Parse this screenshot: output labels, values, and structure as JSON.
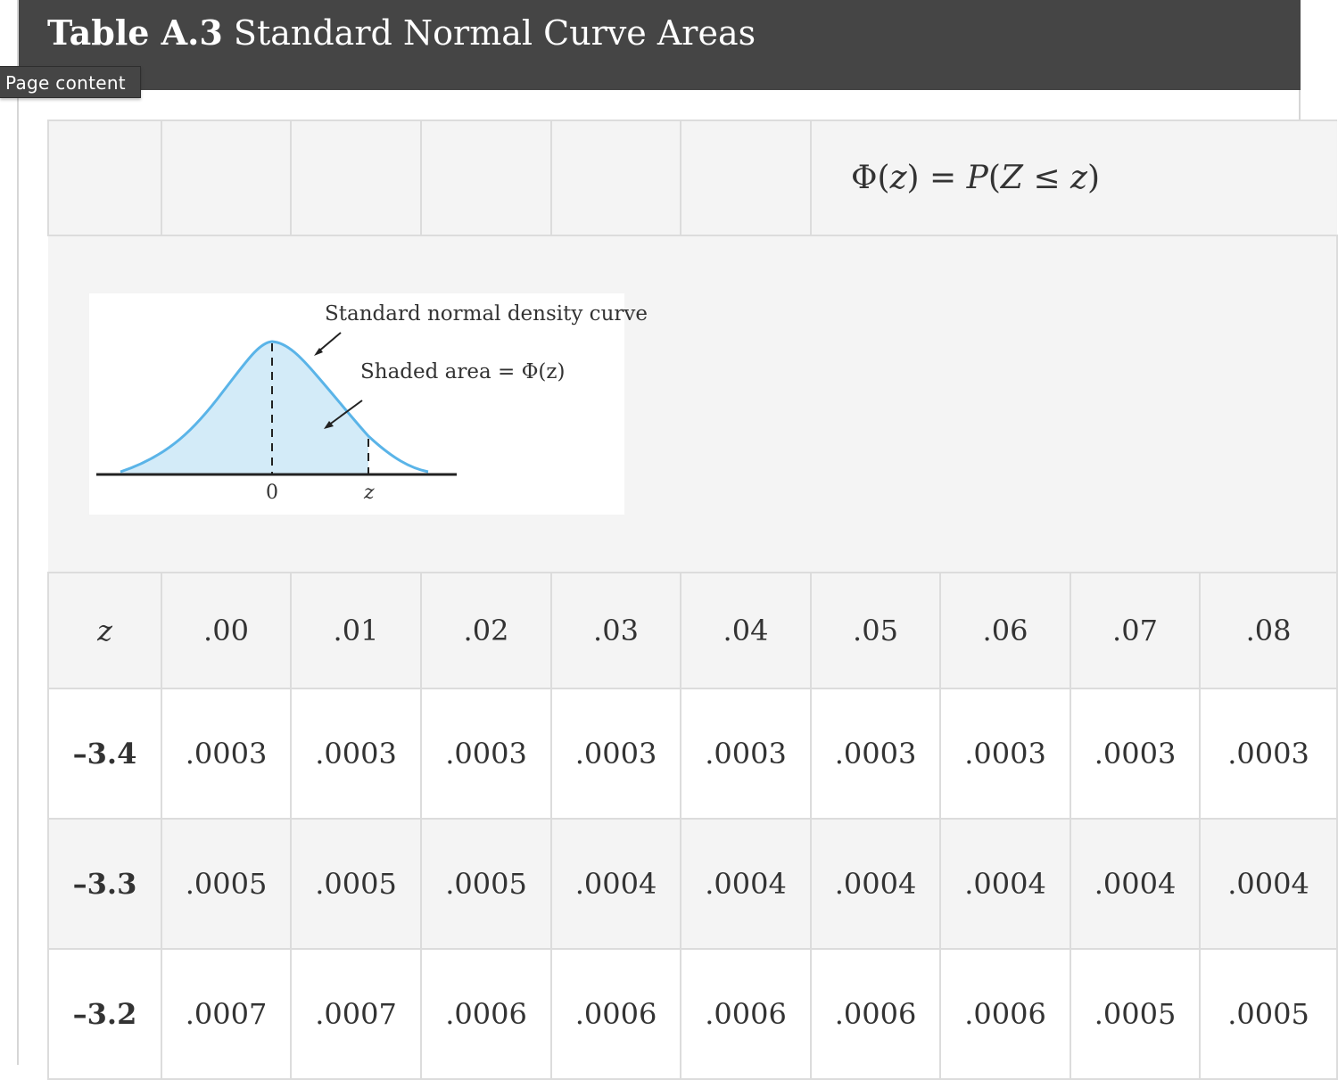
{
  "header": {
    "title_bold": "Table A.3",
    "title_rest": "Standard Normal Curve Areas"
  },
  "page_content_button": "Page content",
  "formula": {
    "phi": "Φ(",
    "z1": "z",
    "mid": ") = ",
    "P": "P",
    "open": "(",
    "Z": "Z",
    "le": " ≤ ",
    "z2": "z",
    "close": ")"
  },
  "figure": {
    "curve_label": "Standard normal density curve",
    "shaded_label": "Shaded area = Φ(z)",
    "tick_zero": "0",
    "tick_z": "z",
    "colors": {
      "curve": "#5ab4e8",
      "fill": "#d3ebf8"
    }
  },
  "columns": {
    "z_label": "z",
    "headers": [
      ".00",
      ".01",
      ".02",
      ".03",
      ".04",
      ".05",
      ".06",
      ".07",
      ".08"
    ]
  },
  "rows": [
    {
      "z": "–3.4",
      "values": [
        ".0003",
        ".0003",
        ".0003",
        ".0003",
        ".0003",
        ".0003",
        ".0003",
        ".0003",
        ".0003"
      ]
    },
    {
      "z": "–3.3",
      "values": [
        ".0005",
        ".0005",
        ".0005",
        ".0004",
        ".0004",
        ".0004",
        ".0004",
        ".0004",
        ".0004"
      ]
    },
    {
      "z": "–3.2",
      "values": [
        ".0007",
        ".0007",
        ".0006",
        ".0006",
        ".0006",
        ".0006",
        ".0006",
        ".0005",
        ".0005"
      ]
    }
  ]
}
